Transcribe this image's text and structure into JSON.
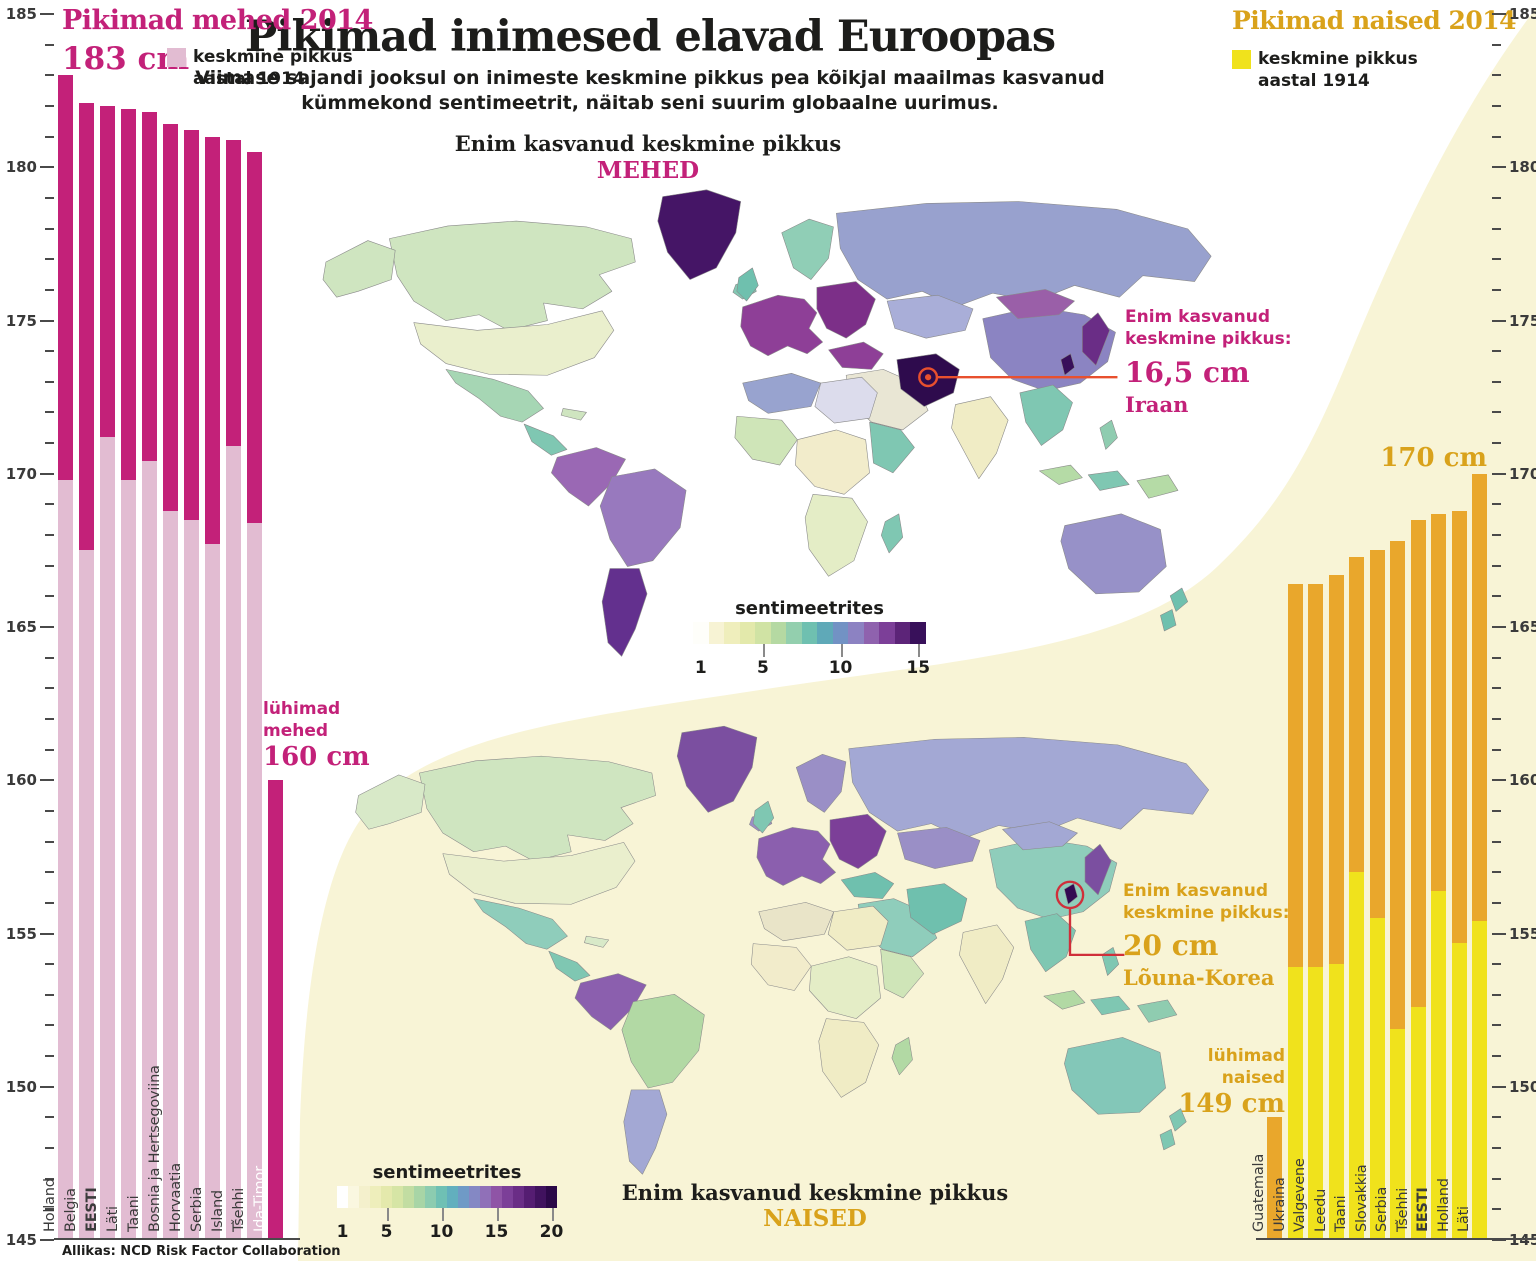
{
  "page": {
    "title": "Pikimad inimesed elavad Euroopas",
    "subtitle_line1": "Viimase sajandi jooksul on inimeste keskmine pikkus  pea kõikjal maailmas kasvanud",
    "subtitle_line2": "kümmekond sentimeetrit, näitab seni suurim globaalne uurimus.",
    "source": "Allikas: NCD Risk Factor Collaboration"
  },
  "axis": {
    "min": 145,
    "max": 185,
    "major_step": 5,
    "labels": [
      185,
      180,
      175,
      170,
      165,
      160,
      155,
      150,
      145
    ]
  },
  "men_section": {
    "header": "Pikimad mehed 2014",
    "max_label": "183 cm",
    "legend_line1": "keskmine pikkus",
    "legend_line2": "aastal 1914",
    "shortest_line1": "lühimad",
    "shortest_line2": "mehed",
    "shortest_value": "160 cm",
    "map_title": "Enim kasvanud keskmine pikkus",
    "map_gender": "MEHED",
    "scale_label": "sentimeetrites",
    "scale_ticks": [
      1,
      5,
      10,
      15
    ],
    "annotation": {
      "line1": "Enim kasvanud",
      "line2": "keskmine pikkus:",
      "value": "16,5 cm",
      "country": "Iraan"
    }
  },
  "women_section": {
    "header": "Pikimad naised 2014",
    "max_label": "170 cm",
    "legend_line1": "keskmine pikkus",
    "legend_line2": "aastal 1914",
    "shortest_line1": "lühimad",
    "shortest_line2": "naised",
    "shortest_value": "149 cm",
    "map_title": "Enim kasvanud keskmine pikkus",
    "map_gender": "NAISED",
    "scale_label": "sentimeetrites",
    "scale_ticks": [
      1,
      5,
      10,
      15,
      20
    ],
    "annotation": {
      "line1": "Enim kasvanud",
      "line2": "keskmine pikkus:",
      "value": "20 cm",
      "country": "Lõuna-Korea"
    }
  },
  "chart_data": [
    {
      "type": "bar",
      "title": "Pikimad mehed 2014",
      "ylabel": "cm",
      "ylim": [
        145,
        185
      ],
      "categories": [
        "Holland",
        "Belgia",
        "EESTI",
        "Läti",
        "Taani",
        "Bosnia ja Hertsegoviina",
        "Horvaatia",
        "Serbia",
        "Island",
        "Tšehhi",
        "Ida-Timor"
      ],
      "series": [
        {
          "name": "keskmine pikkus 2014",
          "values": [
            183,
            182.1,
            182,
            181.9,
            181.8,
            181.4,
            181.2,
            181,
            180.9,
            180.5,
            160
          ]
        },
        {
          "name": "keskmine pikkus aastal 1914",
          "values": [
            169.8,
            167.5,
            171.2,
            169.8,
            170.4,
            168.8,
            168.5,
            167.7,
            170.9,
            168.4,
            null
          ]
        }
      ],
      "annotations": {
        "tallest": "183 cm",
        "shortest": "160 cm"
      }
    },
    {
      "type": "bar",
      "title": "Pikimad naised 2014",
      "ylabel": "cm",
      "ylim": [
        145,
        185
      ],
      "categories": [
        "Guatemala",
        "Ukraina",
        "Valgevene",
        "Leedu",
        "Taani",
        "Slovakkia",
        "Serbia",
        "Tšehhi",
        "EESTI",
        "Holland",
        "Läti"
      ],
      "series": [
        {
          "name": "keskmine pikkus 2014",
          "values": [
            149,
            166.4,
            166.4,
            166.7,
            167.3,
            167.5,
            167.8,
            168.5,
            168.7,
            168.8,
            170
          ]
        },
        {
          "name": "keskmine pikkus aastal 1914",
          "values": [
            null,
            153.9,
            153.9,
            154,
            157,
            155.5,
            151.9,
            152.6,
            156.4,
            154.7,
            155.4
          ]
        }
      ],
      "annotations": {
        "tallest": "170 cm",
        "shortest": "149 cm"
      }
    }
  ],
  "colors": {
    "magenta": "#c32179",
    "light_pink": "#e2bcd2",
    "yellow": "#f0e21c",
    "orange": "#e9a72c",
    "gold": "#d9a21b",
    "red-line": "#e8502e",
    "red-circle": "#d02f3a",
    "bg-yellow": "#f8f4d6"
  },
  "map_scale_colors": {
    "men": [
      "#fefefa",
      "#f7f3d4",
      "#efeebc",
      "#e3e9ab",
      "#d0e3a4",
      "#b5d9a2",
      "#93cfae",
      "#6fc0b0",
      "#5fa9b8",
      "#7292c4",
      "#8c82c2",
      "#8f62ae",
      "#7c3f98",
      "#5c2478",
      "#38105a"
    ],
    "women": [
      "#ffffff",
      "#faf7e0",
      "#f4f0cc",
      "#eeeebb",
      "#e4e9ac",
      "#d6e5a5",
      "#c2dda2",
      "#a8d5a6",
      "#8cccb0",
      "#6fc0b4",
      "#62afbe",
      "#6f9ac6",
      "#8488c4",
      "#9070b8",
      "#8f54a6",
      "#7c3f98",
      "#6a2d86",
      "#551d72",
      "#40125e",
      "#2b0848"
    ]
  },
  "map_colors": {
    "men": {
      "greenland": "#451566",
      "iceland": "#84c9b4",
      "canada": "#cfe5c0",
      "alaska": "#cfe5c0",
      "usa": "#eaefcd",
      "mexico": "#a6d6b4",
      "camerica": "#7fc7b2",
      "cuba": "#cfe5c0",
      "samerica_n": "#9a68b4",
      "brazil": "#9879be",
      "samerica_s": "#63308e",
      "uk": "#6fc0ae",
      "scandinavia": "#90ceb6",
      "europe_w": "#8e3f97",
      "europe_e": "#7c2f88",
      "russia": "#98a1ce",
      "kazakh": "#a9aed8",
      "turkey": "#8e3f97",
      "meast": "#e9e6d4",
      "iran": "#2e0b4d",
      "india": "#f0ecc5",
      "china": "#8b84c2",
      "mongolia": "#9a5fa8",
      "seasia": "#7fc7b2",
      "indonesia1": "#b5dba6",
      "indonesia2": "#7fc7b2",
      "png": "#b5dba6",
      "philippines": "#8fccb0",
      "japan": "#6a2d86",
      "skorea": "#38105a",
      "africa_n": "#98a3cf",
      "africa_ne": "#dcdcec",
      "africa_w": "#cfe5b8",
      "africa_c": "#f2eccb",
      "africa_e": "#7fc7b2",
      "africa_s": "#e4edc6",
      "madagascar": "#7fc7b2",
      "australia": "#9791c8",
      "nz1": "#6fc0ae",
      "nz2": "#6fc0ae"
    },
    "women": {
      "greenland": "#7b4fa0",
      "iceland": "#9a8fc6",
      "canada": "#cfe5c0",
      "alaska": "#d8e9c8",
      "usa": "#eaefcd",
      "mexico": "#8fcdbb",
      "camerica": "#7fc7b2",
      "cuba": "#d8e9c8",
      "samerica_n": "#8b5fae",
      "brazil": "#b2d9a4",
      "samerica_s": "#a3a8d4",
      "uk": "#7fc7b2",
      "scandinavia": "#9a8fc6",
      "europe_w": "#8b5fae",
      "europe_e": "#7c3f98",
      "russia": "#a3a8d4",
      "kazakh": "#9a8fc6",
      "turkey": "#6fc0ae",
      "meast": "#8fcdbb",
      "iran": "#6fc0ae",
      "india": "#f0ecc5",
      "china": "#8fcdbb",
      "mongolia": "#a3a8d4",
      "seasia": "#7fc7b2",
      "indonesia1": "#b2d9a4",
      "indonesia2": "#7fc7b2",
      "png": "#8fccb0",
      "philippines": "#7fc7b2",
      "japan": "#7b4fa0",
      "skorea": "#330a52",
      "africa_n": "#e9e4c8",
      "africa_ne": "#f0ecc5",
      "africa_w": "#f2eccb",
      "africa_c": "#e4edc6",
      "africa_e": "#cfe5b8",
      "africa_s": "#f0ecc5",
      "madagascar": "#b2d9a4",
      "australia": "#83c7b8",
      "nz1": "#7fc7b2",
      "nz2": "#7fc7b2"
    }
  }
}
